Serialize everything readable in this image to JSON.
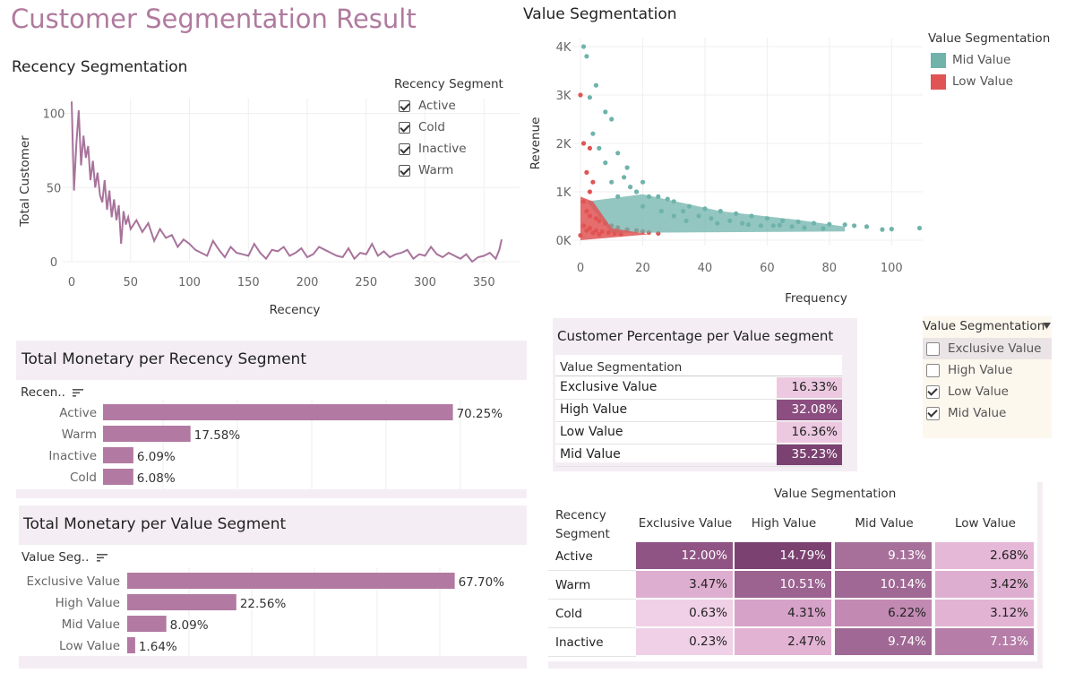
{
  "page_title": "Customer Segmentation Result",
  "recency_chart": {
    "title": "Recency Segmentation",
    "xlabel": "Recency",
    "ylabel": "Total Customer",
    "legend_title": "Recency Segment",
    "legend_items": [
      "Active",
      "Cold",
      "Inactive",
      "Warm"
    ],
    "line_color": "#a8739b"
  },
  "value_chart": {
    "title": "Value Segmentation",
    "xlabel": "Frequency",
    "ylabel": "Revenue",
    "legend_title": "Value Segmentation",
    "legend_items": [
      {
        "label": "Mid Value",
        "color": "#6fb3ab"
      },
      {
        "label": "Low Value",
        "color": "#e05454"
      }
    ]
  },
  "monetary_recency": {
    "title": "Total Monetary per Recency Segment",
    "dim_label": "Recen..",
    "bar_color": "#b27aa2"
  },
  "monetary_value": {
    "title": "Total Monetary per Value Segment",
    "dim_label": "Value Seg..",
    "bar_color": "#b27aa2"
  },
  "pct_table": {
    "title": "Customer Percentage per Value segment",
    "header": "Value Segmentation",
    "rows": [
      {
        "label": "Exclusive Value",
        "value": "16.33%",
        "color": "#ecc9e1"
      },
      {
        "label": "High Value",
        "value": "32.08%",
        "color": "#8c4e80"
      },
      {
        "label": "Low Value",
        "value": "16.36%",
        "color": "#ecc9e1"
      },
      {
        "label": "Mid Value",
        "value": "35.23%",
        "color": "#7b4170"
      }
    ]
  },
  "filter": {
    "title": "Value Segmentation",
    "items": [
      {
        "label": "Exclusive Value",
        "checked": false
      },
      {
        "label": "High Value",
        "checked": false
      },
      {
        "label": "Low Value",
        "checked": true
      },
      {
        "label": "Mid Value",
        "checked": true
      }
    ]
  },
  "heatmap": {
    "col_header_title": "Value Segmentation",
    "row_header_title_1": "Recency",
    "row_header_title_2": "Segment",
    "columns": [
      "Exclusive Value",
      "High Value",
      "Mid Value",
      "Low Value"
    ],
    "rows": [
      {
        "label": "Active",
        "cells": [
          {
            "v": "12.00%",
            "c": "#8f5484",
            "t": "#fff"
          },
          {
            "v": "14.79%",
            "c": "#7b4170",
            "t": "#fff"
          },
          {
            "v": "9.13%",
            "c": "#a6709b",
            "t": "#fff"
          },
          {
            "v": "2.68%",
            "c": "#e6b8d8",
            "t": "#222"
          }
        ]
      },
      {
        "label": "Warm",
        "cells": [
          {
            "v": "3.47%",
            "c": "#deaed0",
            "t": "#222"
          },
          {
            "v": "10.51%",
            "c": "#9c6290",
            "t": "#fff"
          },
          {
            "v": "10.14%",
            "c": "#a06894",
            "t": "#fff"
          },
          {
            "v": "3.42%",
            "c": "#deaed0",
            "t": "#222"
          }
        ]
      },
      {
        "label": "Cold",
        "cells": [
          {
            "v": "0.63%",
            "c": "#f0d0e6",
            "t": "#222"
          },
          {
            "v": "4.31%",
            "c": "#d6a2c8",
            "t": "#222"
          },
          {
            "v": "6.22%",
            "c": "#c28ab3",
            "t": "#222"
          },
          {
            "v": "3.12%",
            "c": "#e3b3d4",
            "t": "#222"
          }
        ]
      },
      {
        "label": "Inactive",
        "cells": [
          {
            "v": "0.23%",
            "c": "#f0d0e6",
            "t": "#222"
          },
          {
            "v": "2.47%",
            "c": "#e3b3d4",
            "t": "#222"
          },
          {
            "v": "9.74%",
            "c": "#a06894",
            "t": "#fff"
          },
          {
            "v": "7.13%",
            "c": "#b57da8",
            "t": "#fff"
          }
        ]
      }
    ]
  },
  "chart_data": [
    {
      "type": "line",
      "title": "Recency Segmentation",
      "xlabel": "Recency",
      "ylabel": "Total Customer",
      "xlim": [
        0,
        365
      ],
      "ylim": [
        0,
        110
      ],
      "x_ticks": [
        0,
        50,
        100,
        150,
        200,
        250,
        300,
        350
      ],
      "y_ticks": [
        0,
        50,
        100
      ],
      "legend": [
        "Active",
        "Cold",
        "Inactive",
        "Warm"
      ],
      "legend_placement": "top-right",
      "grid": true,
      "series": [
        {
          "x": [
            0,
            2,
            4,
            6,
            8,
            10,
            12,
            14,
            16,
            18,
            20,
            22,
            24,
            26,
            28,
            30,
            32,
            34,
            36,
            38,
            40,
            42,
            44,
            46,
            48,
            50,
            55,
            60,
            65,
            70,
            75,
            80,
            85,
            90,
            95,
            100,
            105,
            110,
            115,
            120,
            125,
            130,
            135,
            140,
            145,
            150,
            155,
            160,
            165,
            170,
            175,
            180,
            185,
            190,
            195,
            200,
            205,
            210,
            215,
            220,
            225,
            230,
            235,
            240,
            245,
            250,
            255,
            260,
            265,
            270,
            275,
            280,
            285,
            290,
            295,
            300,
            305,
            310,
            315,
            320,
            325,
            330,
            335,
            340,
            345,
            350,
            355,
            360,
            363,
            365
          ],
          "y": [
            108,
            48,
            80,
            102,
            65,
            85,
            70,
            78,
            55,
            68,
            50,
            60,
            45,
            40,
            55,
            35,
            48,
            30,
            42,
            28,
            38,
            12,
            34,
            25,
            30,
            22,
            28,
            20,
            26,
            14,
            22,
            16,
            18,
            10,
            15,
            12,
            8,
            6,
            4,
            14,
            8,
            3,
            10,
            6,
            5,
            4,
            12,
            6,
            2,
            8,
            7,
            10,
            4,
            6,
            9,
            3,
            5,
            10,
            8,
            6,
            4,
            3,
            9,
            2,
            6,
            5,
            12,
            4,
            7,
            3,
            5,
            6,
            8,
            2,
            5,
            4,
            10,
            5,
            3,
            6,
            4,
            2,
            5,
            0,
            3,
            4,
            6,
            2,
            8,
            15
          ]
        }
      ]
    },
    {
      "type": "scatter",
      "title": "Value Segmentation",
      "xlabel": "Frequency",
      "ylabel": "Revenue",
      "xlim": [
        0,
        110
      ],
      "ylim": [
        0,
        4000
      ],
      "x_ticks": [
        0,
        20,
        40,
        60,
        80,
        100
      ],
      "y_ticks": [
        "0K",
        "1K",
        "2K",
        "3K",
        "4K"
      ],
      "legend_placement": "top-right",
      "grid": true,
      "series": [
        {
          "name": "Mid Value",
          "points": [
            [
              1,
              4000
            ],
            [
              2,
              3800
            ],
            [
              5,
              3200
            ],
            [
              8,
              2650
            ],
            [
              3,
              2950
            ],
            [
              10,
              2500
            ],
            [
              12,
              1800
            ],
            [
              15,
              1500
            ],
            [
              4,
              2200
            ],
            [
              6,
              1900
            ],
            [
              8,
              1600
            ],
            [
              20,
              1200
            ],
            [
              25,
              900
            ],
            [
              30,
              800
            ],
            [
              35,
              700
            ],
            [
              40,
              650
            ],
            [
              45,
              600
            ],
            [
              50,
              550
            ],
            [
              55,
              500
            ],
            [
              60,
              450
            ],
            [
              65,
              400
            ],
            [
              70,
              380
            ],
            [
              75,
              350
            ],
            [
              80,
              330
            ],
            [
              85,
              320
            ],
            [
              88,
              300
            ],
            [
              92,
              280
            ],
            [
              97,
              220
            ],
            [
              100,
              230
            ],
            [
              109,
              250
            ],
            [
              18,
              1000
            ],
            [
              22,
              900
            ],
            [
              28,
              850
            ],
            [
              33,
              600
            ],
            [
              38,
              500
            ],
            [
              42,
              450
            ],
            [
              48,
              400
            ],
            [
              52,
              350
            ],
            [
              58,
              300
            ],
            [
              62,
              300
            ],
            [
              68,
              280
            ],
            [
              72,
              260
            ],
            [
              78,
              240
            ],
            [
              14,
              1300
            ],
            [
              16,
              1100
            ],
            [
              10,
              1200
            ],
            [
              12,
              900
            ],
            [
              20,
              700
            ],
            [
              26,
              600
            ],
            [
              30,
              500
            ],
            [
              34,
              400
            ],
            [
              44,
              350
            ],
            [
              54,
              320
            ],
            [
              64,
              310
            ]
          ]
        },
        {
          "name": "Low Value",
          "points": [
            [
              0,
              3000
            ],
            [
              1,
              2000
            ],
            [
              3,
              1900
            ],
            [
              2,
              1400
            ],
            [
              4,
              1200
            ],
            [
              3,
              1000
            ],
            [
              1,
              800
            ],
            [
              2,
              600
            ],
            [
              3,
              500
            ],
            [
              5,
              450
            ],
            [
              6,
              400
            ],
            [
              8,
              350
            ],
            [
              10,
              300
            ],
            [
              12,
              260
            ],
            [
              15,
              220
            ],
            [
              18,
              200
            ],
            [
              20,
              180
            ],
            [
              22,
              160
            ],
            [
              25,
              140
            ],
            [
              2,
              200
            ],
            [
              4,
              150
            ],
            [
              6,
              120
            ],
            [
              0,
              100
            ],
            [
              1,
              300
            ],
            [
              3,
              250
            ],
            [
              5,
              200
            ],
            [
              7,
              180
            ],
            [
              9,
              160
            ],
            [
              11,
              140
            ],
            [
              13,
              120
            ]
          ]
        }
      ]
    },
    {
      "type": "bar",
      "orientation": "horizontal",
      "title": "Total Monetary per Recency Segment",
      "categories": [
        "Active",
        "Warm",
        "Inactive",
        "Cold"
      ],
      "values": [
        70.25,
        17.58,
        6.09,
        6.08
      ],
      "labels": [
        "70.25%",
        "17.58%",
        "6.09%",
        "6.08%"
      ],
      "xlim": [
        0,
        100
      ]
    },
    {
      "type": "bar",
      "orientation": "horizontal",
      "title": "Total Monetary per Value Segment",
      "categories": [
        "Exclusive Value",
        "High Value",
        "Mid Value",
        "Low Value"
      ],
      "values": [
        67.7,
        22.56,
        8.09,
        1.64
      ],
      "labels": [
        "67.70%",
        "22.56%",
        "8.09%",
        "1.64%"
      ],
      "xlim": [
        0,
        100
      ]
    },
    {
      "type": "table",
      "title": "Customer Percentage per Value segment",
      "columns": [
        "Value Segmentation",
        ""
      ],
      "rows": [
        [
          "Exclusive Value",
          "16.33%"
        ],
        [
          "High Value",
          "32.08%"
        ],
        [
          "Low Value",
          "16.36%"
        ],
        [
          "Mid Value",
          "35.23%"
        ]
      ]
    },
    {
      "type": "heatmap",
      "title": "Value Segmentation",
      "row_dimension": "Recency Segment",
      "columns": [
        "Exclusive Value",
        "High Value",
        "Mid Value",
        "Low Value"
      ],
      "rows": [
        "Active",
        "Warm",
        "Cold",
        "Inactive"
      ],
      "values": [
        [
          12.0,
          14.79,
          9.13,
          2.68
        ],
        [
          3.47,
          10.51,
          10.14,
          3.42
        ],
        [
          0.63,
          4.31,
          6.22,
          3.12
        ],
        [
          0.23,
          2.47,
          9.74,
          7.13
        ]
      ]
    }
  ]
}
